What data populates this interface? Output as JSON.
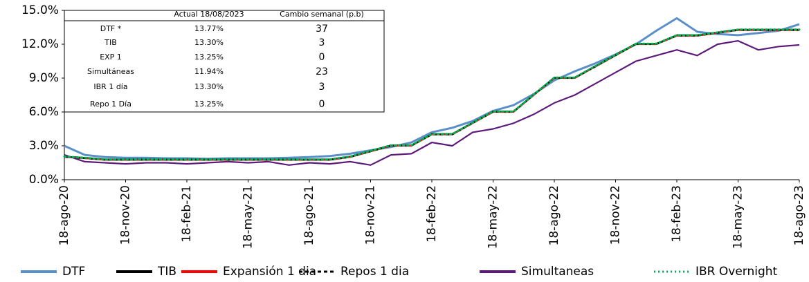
{
  "chart_data": {
    "type": "line",
    "categories": [
      "18-ago-20",
      null,
      null,
      "18-nov-20",
      null,
      null,
      "18-feb-21",
      null,
      null,
      "18-may-21",
      null,
      null,
      "18-ago-21",
      null,
      null,
      "18-nov-21",
      null,
      null,
      "18-feb-22",
      null,
      null,
      "18-may-22",
      null,
      null,
      "18-ago-22",
      null,
      null,
      "18-nov-22",
      null,
      null,
      "18-feb-23",
      null,
      null,
      "18-may-23",
      null,
      null,
      "18-ago-23"
    ],
    "ylim": [
      0,
      15
    ],
    "yticks": [
      {
        "value": 0,
        "label": "0.0%"
      },
      {
        "value": 3,
        "label": "3.0%"
      },
      {
        "value": 6,
        "label": "6.0%"
      },
      {
        "value": 9,
        "label": "9.0%"
      },
      {
        "value": 12,
        "label": "12.0%"
      },
      {
        "value": 15,
        "label": "15.0%"
      }
    ],
    "legend": "bottom",
    "series": [
      {
        "name": "DTF",
        "color": "#5b8fc9",
        "dash": "solid",
        "values": [
          3.0,
          2.2,
          2.0,
          1.95,
          1.95,
          1.9,
          1.9,
          1.85,
          1.9,
          1.9,
          1.9,
          1.95,
          2.0,
          2.1,
          2.3,
          2.6,
          2.9,
          3.3,
          4.2,
          4.6,
          5.2,
          6.1,
          6.6,
          7.6,
          8.8,
          9.6,
          10.3,
          11.1,
          12.0,
          13.2,
          14.3,
          13.1,
          12.9,
          12.8,
          13.0,
          13.2,
          13.77
        ]
      },
      {
        "name": "TIB",
        "color": "#000000",
        "dash": "solid",
        "values": [
          2.05,
          1.95,
          1.8,
          1.8,
          1.8,
          1.8,
          1.8,
          1.8,
          1.8,
          1.8,
          1.8,
          1.8,
          1.8,
          1.8,
          2.05,
          2.55,
          3.05,
          3.05,
          4.05,
          4.05,
          5.05,
          6.05,
          6.05,
          7.55,
          9.05,
          9.05,
          10.05,
          11.05,
          12.05,
          12.05,
          12.8,
          12.8,
          13.05,
          13.3,
          13.3,
          13.3,
          13.3
        ]
      },
      {
        "name": "Expansión 1 dia",
        "color": "#ff0000",
        "dash": "solid",
        "values": [
          2.0,
          1.9,
          1.75,
          1.75,
          1.75,
          1.75,
          1.75,
          1.75,
          1.75,
          1.75,
          1.75,
          1.75,
          1.75,
          1.75,
          2.0,
          2.5,
          3.0,
          3.0,
          4.0,
          4.0,
          5.0,
          6.0,
          6.0,
          7.5,
          9.0,
          9.0,
          10.0,
          11.0,
          12.0,
          12.0,
          12.75,
          12.75,
          13.0,
          13.25,
          13.25,
          13.25,
          13.25
        ]
      },
      {
        "name": "Repos 1 dia",
        "color": "#000000",
        "dash": "dashed",
        "values": [
          2.0,
          1.9,
          1.75,
          1.75,
          1.75,
          1.75,
          1.75,
          1.75,
          1.75,
          1.75,
          1.75,
          1.75,
          1.75,
          1.75,
          2.0,
          2.5,
          3.0,
          3.0,
          4.0,
          4.0,
          5.0,
          6.0,
          6.0,
          7.5,
          9.0,
          9.0,
          10.0,
          11.0,
          12.0,
          12.0,
          12.75,
          12.75,
          13.0,
          13.25,
          13.25,
          13.25,
          13.25
        ]
      },
      {
        "name": "Simultaneas",
        "color": "#5c1a7a",
        "dash": "solid",
        "values": [
          2.2,
          1.6,
          1.5,
          1.4,
          1.5,
          1.5,
          1.4,
          1.5,
          1.6,
          1.5,
          1.6,
          1.3,
          1.5,
          1.4,
          1.6,
          1.3,
          2.2,
          2.3,
          3.3,
          3.0,
          4.2,
          4.5,
          5.0,
          5.8,
          6.8,
          7.5,
          8.5,
          9.5,
          10.5,
          11.0,
          11.5,
          11.0,
          12.0,
          12.3,
          11.5,
          11.8,
          11.94
        ]
      },
      {
        "name": "IBR Overnight",
        "color": "#00b050",
        "dash": "dotted",
        "values": [
          2.05,
          1.95,
          1.8,
          1.8,
          1.8,
          1.8,
          1.8,
          1.8,
          1.8,
          1.8,
          1.8,
          1.8,
          1.8,
          1.8,
          2.05,
          2.55,
          3.05,
          3.05,
          4.05,
          4.05,
          5.05,
          6.05,
          6.05,
          7.55,
          9.05,
          9.05,
          10.05,
          11.05,
          12.05,
          12.05,
          12.8,
          12.8,
          13.05,
          13.3,
          13.3,
          13.3,
          13.3
        ]
      }
    ],
    "table": {
      "header": [
        "Actual 18/08/2023",
        "Cambio semanal (p.b)"
      ],
      "rows": [
        [
          "DTF *",
          "13.77%",
          37
        ],
        [
          "TIB",
          "13.30%",
          3
        ],
        [
          "EXP 1",
          "13.25%",
          0
        ],
        [
          "Simultáneas",
          "11.94%",
          23
        ],
        [
          "IBR 1 día",
          "13.30%",
          3
        ],
        [
          "Repo 1 Día",
          "13.25%",
          0
        ]
      ]
    }
  }
}
